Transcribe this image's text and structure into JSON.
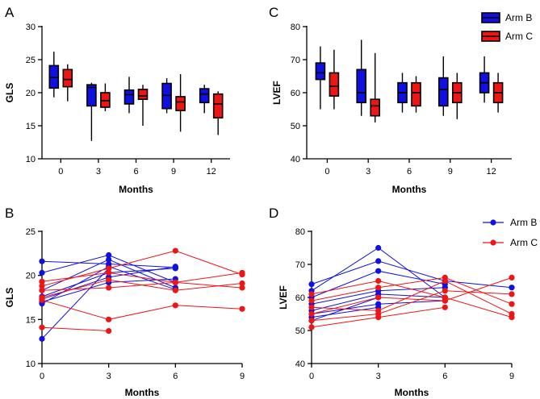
{
  "figure": {
    "colors": {
      "arm_b": "#1010e0",
      "arm_c": "#ee1515",
      "axis": "#000000"
    },
    "legend_box": [
      {
        "label": "Arm B",
        "color": "#1010e0"
      },
      {
        "label": "Arm C",
        "color": "#ee1515"
      }
    ],
    "legend_line": [
      {
        "label": "Arm B",
        "color": "#1010e0"
      },
      {
        "label": "Arm C",
        "color": "#ee1515"
      }
    ]
  },
  "chart_data": [
    {
      "panel": "A",
      "type": "box",
      "ylabel": "GLS",
      "xlabel": "Months",
      "yticks": [
        10,
        15,
        20,
        25,
        30
      ],
      "ylim": [
        10,
        30
      ],
      "categories": [
        "0",
        "3",
        "6",
        "9",
        "12"
      ],
      "legend": "none",
      "series": [
        {
          "name": "Arm B",
          "boxes": [
            {
              "min": 19.3,
              "q1": 20.7,
              "median": 22.3,
              "q3": 24.1,
              "max": 26.2
            },
            {
              "min": 12.7,
              "q1": 18.0,
              "median": 20.8,
              "q3": 21.2,
              "max": 21.5
            },
            {
              "min": 16.9,
              "q1": 18.3,
              "median": 19.7,
              "q3": 20.4,
              "max": 22.4
            },
            {
              "min": 16.9,
              "q1": 17.6,
              "median": 19.6,
              "q3": 21.4,
              "max": 22.2
            },
            {
              "min": 16.9,
              "q1": 18.5,
              "median": 19.8,
              "q3": 20.6,
              "max": 21.2
            }
          ]
        },
        {
          "name": "Arm C",
          "boxes": [
            {
              "min": 18.7,
              "q1": 20.9,
              "median": 22.0,
              "q3": 23.5,
              "max": 24.3
            },
            {
              "min": 17.2,
              "q1": 17.8,
              "median": 18.8,
              "q3": 20.0,
              "max": 21.4
            },
            {
              "min": 15.0,
              "q1": 19.0,
              "median": 19.5,
              "q3": 20.5,
              "max": 21.2
            },
            {
              "min": 14.1,
              "q1": 17.3,
              "median": 18.6,
              "q3": 19.4,
              "max": 22.8
            },
            {
              "min": 13.6,
              "q1": 16.2,
              "median": 18.3,
              "q3": 19.8,
              "max": 20.2
            }
          ]
        }
      ]
    },
    {
      "panel": "C",
      "type": "box",
      "ylabel": "LVEF",
      "xlabel": "Months",
      "yticks": [
        40,
        50,
        60,
        70,
        80
      ],
      "ylim": [
        40,
        80
      ],
      "categories": [
        "0",
        "3",
        "6",
        "9",
        "12"
      ],
      "legend": "top-right",
      "series": [
        {
          "name": "Arm B",
          "boxes": [
            {
              "min": 55,
              "q1": 64,
              "median": 66,
              "q3": 69,
              "max": 74
            },
            {
              "min": 53,
              "q1": 57,
              "median": 60,
              "q3": 67,
              "max": 76
            },
            {
              "min": 54,
              "q1": 57,
              "median": 60,
              "q3": 63,
              "max": 66
            },
            {
              "min": 53,
              "q1": 56,
              "median": 61,
              "q3": 64.5,
              "max": 71
            },
            {
              "min": 57,
              "q1": 60,
              "median": 63,
              "q3": 66,
              "max": 71
            }
          ]
        },
        {
          "name": "Arm C",
          "boxes": [
            {
              "min": 55,
              "q1": 59,
              "median": 62,
              "q3": 66,
              "max": 73
            },
            {
              "min": 51,
              "q1": 53,
              "median": 56,
              "q3": 58,
              "max": 72
            },
            {
              "min": 54,
              "q1": 56,
              "median": 60,
              "q3": 63,
              "max": 65
            },
            {
              "min": 52,
              "q1": 57,
              "median": 60,
              "q3": 63,
              "max": 66
            },
            {
              "min": 54,
              "q1": 57,
              "median": 60,
              "q3": 63,
              "max": 66
            }
          ]
        }
      ]
    },
    {
      "panel": "B",
      "type": "line",
      "ylabel": "GLS",
      "xlabel": "Months",
      "yticks": [
        10,
        15,
        20,
        25
      ],
      "ylim": [
        10,
        25
      ],
      "xticks": [
        0,
        3,
        6,
        9
      ],
      "xlim": [
        0,
        9
      ],
      "legend": "none",
      "series": [
        {
          "name": "Arm B",
          "lines": [
            {
              "x": [
                0,
                3,
                6
              ],
              "y": [
                21.6,
                21.3,
                20.9
              ]
            },
            {
              "x": [
                0,
                3,
                6
              ],
              "y": [
                20.3,
                22.3,
                19.2
              ]
            },
            {
              "x": [
                0,
                3,
                6
              ],
              "y": [
                18.3,
                21.8,
                18.6
              ]
            },
            {
              "x": [
                0,
                3,
                6
              ],
              "y": [
                17.6,
                20.3,
                20.8
              ]
            },
            {
              "x": [
                0,
                3,
                6
              ],
              "y": [
                17.3,
                19.8,
                21.0
              ]
            },
            {
              "x": [
                0,
                3,
                6
              ],
              "y": [
                17.0,
                19.2,
                19.6
              ]
            },
            {
              "x": [
                0,
                3,
                6
              ],
              "y": [
                16.8,
                21.0,
                18.4
              ]
            },
            {
              "x": [
                0,
                3
              ],
              "y": [
                12.8,
                20.8
              ]
            }
          ]
        },
        {
          "name": "Arm C",
          "lines": [
            {
              "x": [
                0,
                3,
                6,
                9
              ],
              "y": [
                19.3,
                20.3,
                19.2,
                20.3
              ]
            },
            {
              "x": [
                0,
                3,
                6,
                9
              ],
              "y": [
                18.8,
                20.8,
                22.8,
                20.1
              ]
            },
            {
              "x": [
                0,
                3,
                6,
                9
              ],
              "y": [
                18.3,
                18.6,
                19.2,
                18.6
              ]
            },
            {
              "x": [
                0,
                3,
                6,
                9
              ],
              "y": [
                17.5,
                19.5,
                18.3,
                19.1
              ]
            },
            {
              "x": [
                0,
                3,
                6,
                9
              ],
              "y": [
                17.2,
                15.0,
                16.6,
                16.2
              ]
            },
            {
              "x": [
                0,
                3
              ],
              "y": [
                14.1,
                13.7
              ]
            }
          ]
        }
      ]
    },
    {
      "panel": "D",
      "type": "line",
      "ylabel": "LVEF",
      "xlabel": "Months",
      "yticks": [
        40,
        50,
        60,
        70,
        80
      ],
      "ylim": [
        40,
        80
      ],
      "xticks": [
        0,
        3,
        6,
        9
      ],
      "xlim": [
        0,
        9
      ],
      "legend": "top-right",
      "series": [
        {
          "name": "Arm B",
          "lines": [
            {
              "x": [
                0,
                3,
                6,
                9
              ],
              "y": [
                64,
                71,
                65,
                63
              ]
            },
            {
              "x": [
                0,
                3,
                6
              ],
              "y": [
                62,
                75,
                60
              ]
            },
            {
              "x": [
                0,
                3,
                6
              ],
              "y": [
                60,
                68,
                64
              ]
            },
            {
              "x": [
                0,
                3,
                6
              ],
              "y": [
                58,
                62,
                63
              ]
            },
            {
              "x": [
                0,
                3,
                6
              ],
              "y": [
                56,
                61,
                60
              ]
            },
            {
              "x": [
                0,
                3,
                6
              ],
              "y": [
                55,
                58,
                59
              ]
            },
            {
              "x": [
                0,
                3
              ],
              "y": [
                54,
                57
              ]
            },
            {
              "x": [
                0,
                3
              ],
              "y": [
                53,
                60
              ]
            }
          ]
        },
        {
          "name": "Arm C",
          "lines": [
            {
              "x": [
                0,
                3,
                6,
                9
              ],
              "y": [
                61,
                65,
                60,
                54
              ]
            },
            {
              "x": [
                0,
                3,
                6,
                9
              ],
              "y": [
                59,
                63,
                66,
                58
              ]
            },
            {
              "x": [
                0,
                3,
                6,
                9
              ],
              "y": [
                57,
                56,
                65,
                55
              ]
            },
            {
              "x": [
                0,
                3,
                6,
                9
              ],
              "y": [
                55,
                60,
                59,
                66
              ]
            },
            {
              "x": [
                0,
                3,
                6,
                9
              ],
              "y": [
                53,
                55,
                62,
                61
              ]
            },
            {
              "x": [
                0,
                3,
                6
              ],
              "y": [
                51,
                54,
                57
              ]
            }
          ]
        }
      ]
    }
  ]
}
